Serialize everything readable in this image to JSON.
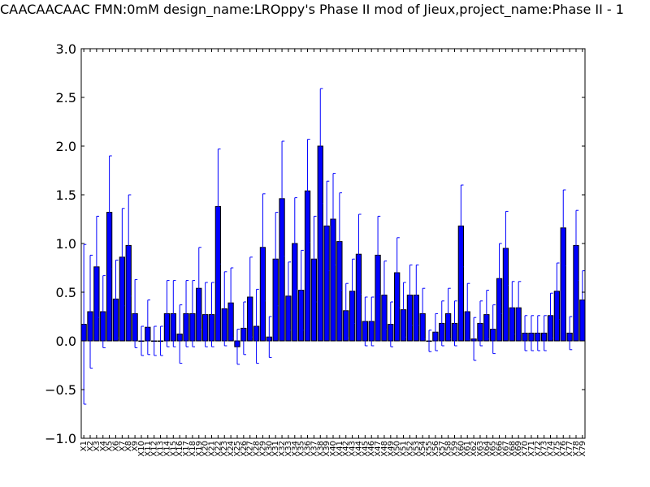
{
  "chart_data": {
    "type": "bar",
    "title": "CAACAACAAC  FMN:0mM  design_name:LROppy's Phase II mod of Jieux,project_name:Phase II - 1",
    "xlabel": "",
    "ylabel": "",
    "ylim": [
      -1.0,
      3.0
    ],
    "yticks": [
      "−1.0",
      "−0.5",
      "0.0",
      "0.5",
      "1.0",
      "1.5",
      "2.0",
      "2.5",
      "3.0"
    ],
    "grid": false,
    "bar_color": "#0000ff",
    "error_color": "#0000ff",
    "categories": [
      "X1",
      "X2",
      "X3",
      "X4",
      "X5",
      "X6",
      "X7",
      "X8",
      "X9",
      "X10",
      "X11",
      "X12",
      "X13",
      "X14",
      "X15",
      "X16",
      "X17",
      "X18",
      "X19",
      "X20",
      "X21",
      "X22",
      "X23",
      "X24",
      "X25",
      "X26",
      "X27",
      "X28",
      "X29",
      "X30",
      "X31",
      "X32",
      "X33",
      "X34",
      "X35",
      "X36",
      "X37",
      "X38",
      "X39",
      "X40",
      "X41",
      "X42",
      "X43",
      "X44",
      "X45",
      "X46",
      "X47",
      "X48",
      "X49",
      "X50",
      "X51",
      "X52",
      "X53",
      "X54",
      "X55",
      "X56",
      "X57",
      "X58",
      "X59",
      "X60",
      "X61",
      "X62",
      "X63",
      "X64",
      "X65",
      "X66",
      "X67",
      "X68",
      "X69",
      "X70",
      "X71",
      "X72",
      "X73",
      "X74",
      "X75",
      "X76",
      "X77",
      "X78",
      "X79"
    ],
    "values": [
      0.17,
      0.3,
      0.76,
      0.3,
      1.32,
      0.43,
      0.86,
      0.98,
      0.28,
      0.0,
      0.14,
      0.0,
      0.0,
      0.28,
      0.28,
      0.07,
      0.28,
      0.28,
      0.54,
      0.27,
      0.27,
      1.38,
      0.33,
      0.39,
      -0.06,
      0.13,
      0.45,
      0.15,
      0.96,
      0.04,
      0.84,
      1.46,
      0.46,
      1.0,
      0.52,
      1.54,
      0.84,
      2.0,
      1.18,
      1.25,
      1.02,
      0.31,
      0.51,
      0.89,
      0.2,
      0.2,
      0.88,
      0.47,
      0.17,
      0.7,
      0.32,
      0.47,
      0.47,
      0.28,
      0.0,
      0.09,
      0.18,
      0.28,
      0.18,
      1.18,
      0.3,
      0.02,
      0.18,
      0.27,
      0.12,
      0.64,
      0.95,
      0.34,
      0.34,
      0.08,
      0.08,
      0.08,
      0.08,
      0.26,
      0.51,
      1.16,
      0.08,
      0.98,
      0.42
    ],
    "errors": [
      0.82,
      0.58,
      0.52,
      0.37,
      0.58,
      0.4,
      0.5,
      0.52,
      0.35,
      0.15,
      0.28,
      0.15,
      0.15,
      0.34,
      0.34,
      0.3,
      0.34,
      0.34,
      0.42,
      0.33,
      0.33,
      0.59,
      0.38,
      0.36,
      0.18,
      0.27,
      0.41,
      0.38,
      0.55,
      0.21,
      0.48,
      0.59,
      0.35,
      0.47,
      0.41,
      0.53,
      0.44,
      0.59,
      0.46,
      0.47,
      0.5,
      0.28,
      0.33,
      0.41,
      0.25,
      0.25,
      0.4,
      0.35,
      0.23,
      0.36,
      0.28,
      0.31,
      0.31,
      0.26,
      0.11,
      0.19,
      0.23,
      0.26,
      0.23,
      0.42,
      0.29,
      0.22,
      0.23,
      0.25,
      0.25,
      0.36,
      0.38,
      0.27,
      0.27,
      0.18,
      0.18,
      0.18,
      0.18,
      0.23,
      0.29,
      0.39,
      0.17,
      0.36,
      0.3
    ]
  }
}
